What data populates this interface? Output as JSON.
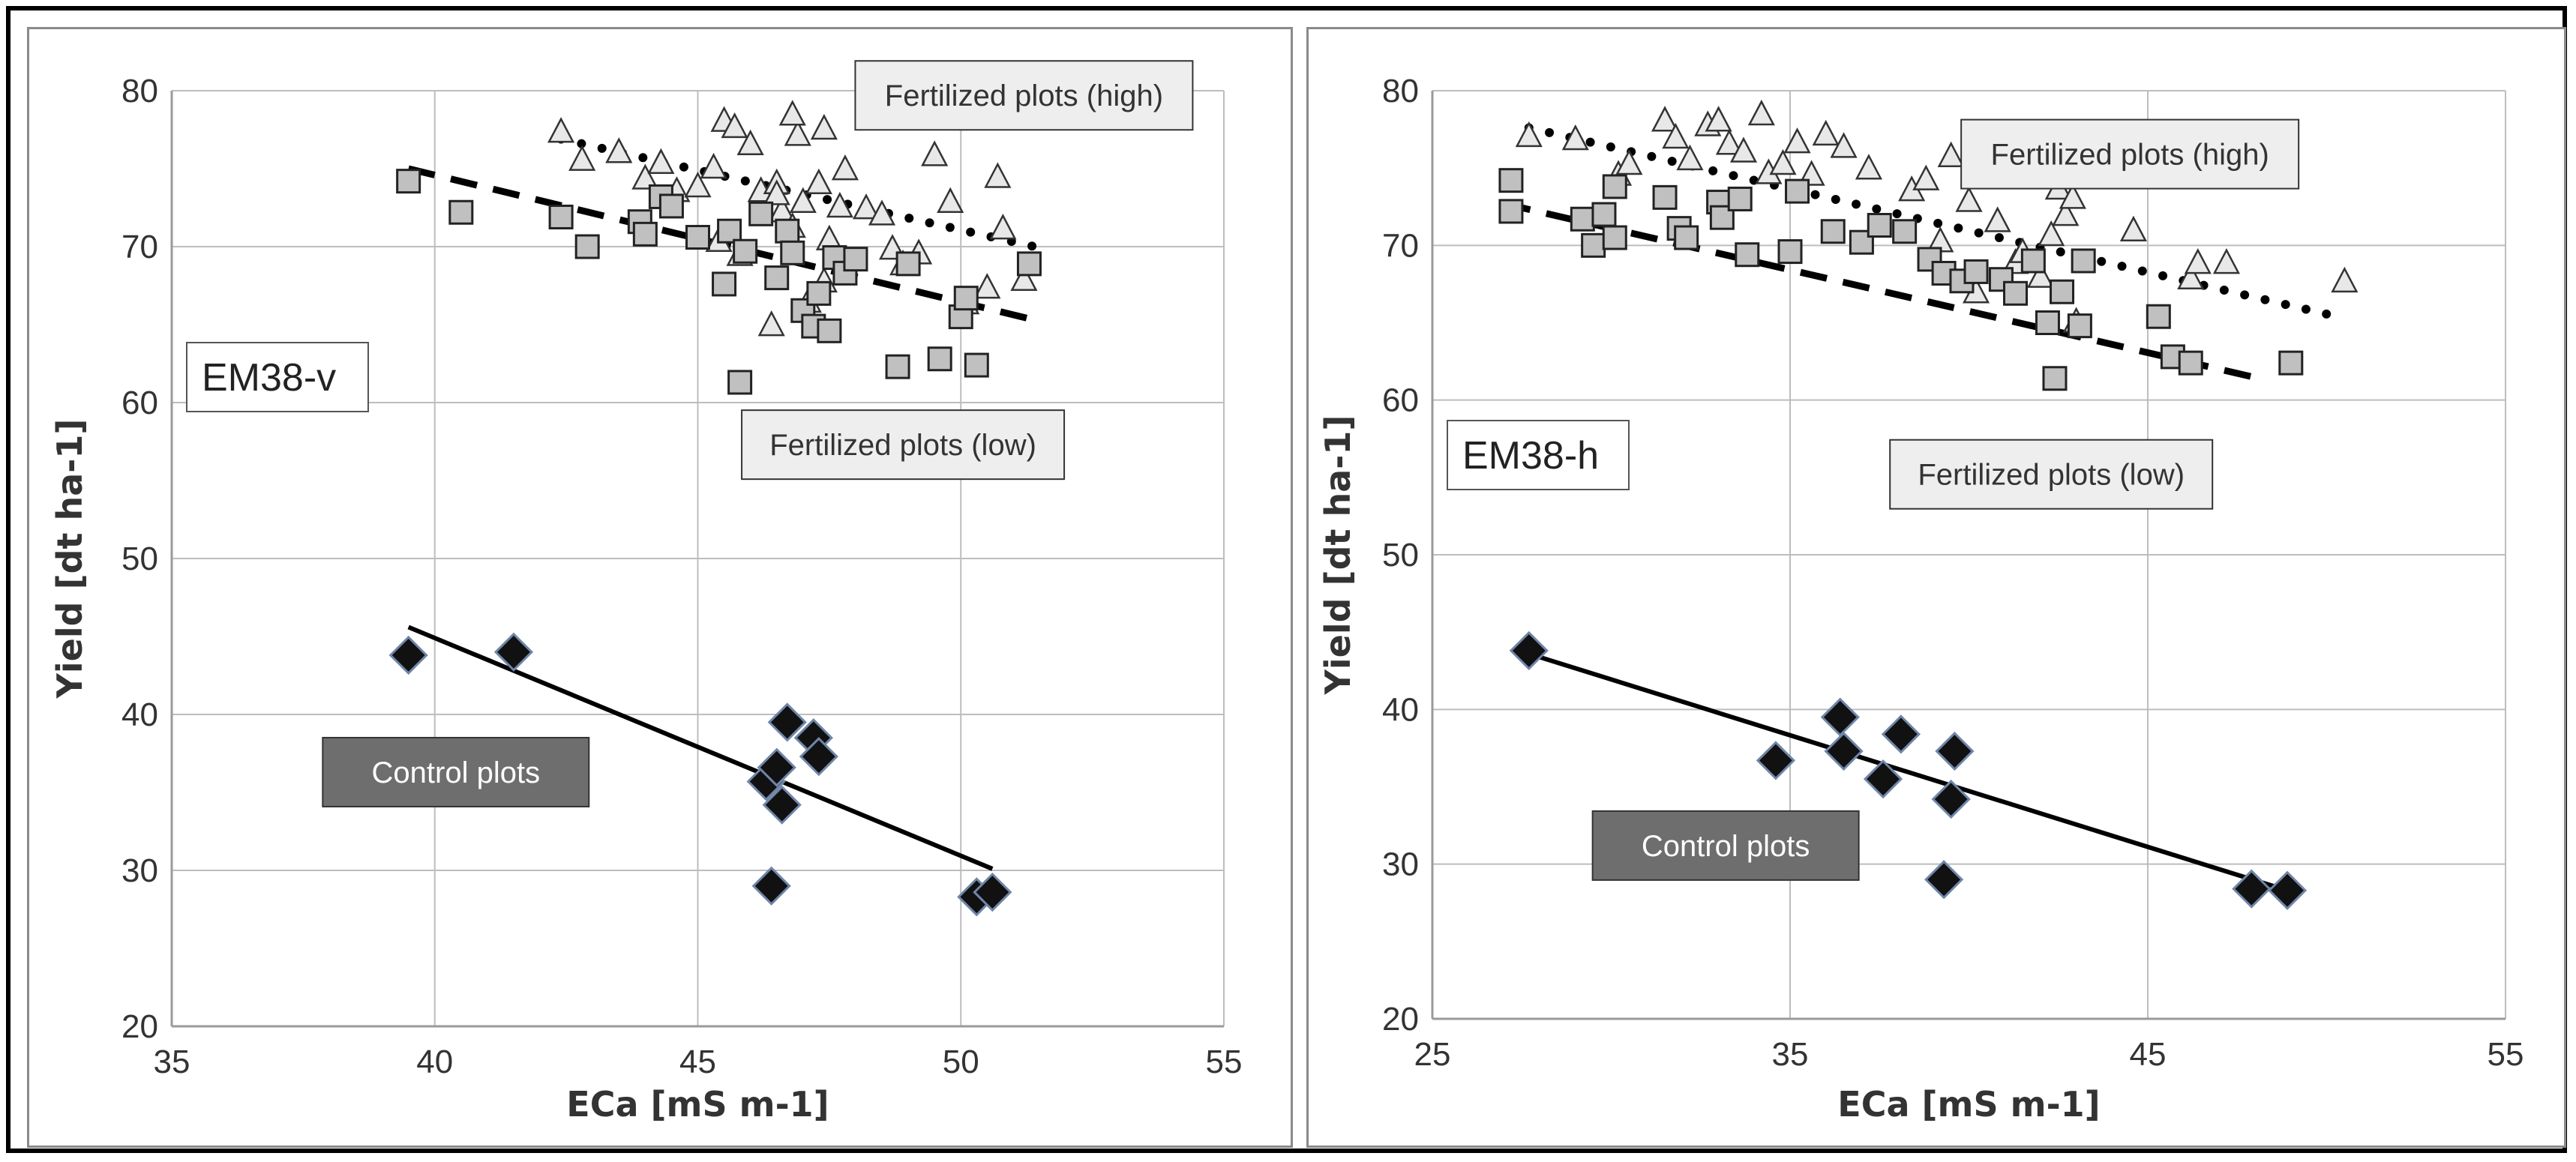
{
  "chart_data": [
    {
      "type": "scatter",
      "panel_label": "EM38-v",
      "xlabel": "ECa [mS m-1]",
      "ylabel": "Yield [dt ha-1]",
      "xlim": [
        35,
        55
      ],
      "ylim": [
        20,
        80
      ],
      "xticks": [
        "35",
        "40",
        "45",
        "50",
        "55"
      ],
      "yticks": [
        "20",
        "30",
        "40",
        "50",
        "60",
        "70",
        "80"
      ],
      "grid": true,
      "annotations": [
        {
          "text": "Fertilized plots (high)",
          "style": "light",
          "x": 51.2,
          "y": 79.7
        },
        {
          "text": "Fertilized plots (low)",
          "style": "light",
          "x": 48.9,
          "y": 57.3
        },
        {
          "text": "Control plots",
          "style": "dark",
          "x": 40.4,
          "y": 36.3
        }
      ],
      "series": [
        {
          "name": "Fertilized plots (high)",
          "marker": "triangle",
          "points": [
            [
              42.4,
              77.3
            ],
            [
              42.8,
              75.5
            ],
            [
              43.5,
              76.0
            ],
            [
              44.0,
              74.3
            ],
            [
              44.3,
              75.3
            ],
            [
              44.6,
              73.5
            ],
            [
              45.0,
              73.8
            ],
            [
              45.3,
              75.0
            ],
            [
              45.5,
              78.0
            ],
            [
              45.7,
              77.6
            ],
            [
              45.4,
              70.3
            ],
            [
              45.8,
              69.4
            ],
            [
              46.0,
              76.5
            ],
            [
              46.2,
              73.5
            ],
            [
              46.5,
              74.0
            ],
            [
              46.6,
              72.2
            ],
            [
              46.8,
              71.2
            ],
            [
              47.0,
              72.8
            ],
            [
              47.1,
              66.4
            ],
            [
              47.3,
              74.0
            ],
            [
              47.4,
              67.7
            ],
            [
              47.5,
              70.4
            ],
            [
              47.7,
              72.5
            ],
            [
              47.8,
              74.9
            ],
            [
              48.2,
              72.4
            ],
            [
              48.5,
              72.0
            ],
            [
              48.7,
              69.8
            ],
            [
              48.9,
              68.8
            ],
            [
              49.2,
              69.5
            ],
            [
              49.5,
              75.8
            ],
            [
              49.8,
              72.8
            ],
            [
              50.1,
              66.3
            ],
            [
              50.5,
              67.3
            ],
            [
              50.7,
              74.4
            ],
            [
              50.8,
              71.1
            ],
            [
              51.2,
              67.8
            ],
            [
              46.4,
              64.9
            ],
            [
              46.9,
              77.1
            ],
            [
              47.4,
              77.5
            ],
            [
              46.8,
              78.4
            ],
            [
              46.5,
              73.3
            ]
          ]
        },
        {
          "name": "Fertilized plots (low)",
          "marker": "square",
          "points": [
            [
              39.5,
              74.2
            ],
            [
              40.5,
              72.2
            ],
            [
              42.4,
              71.9
            ],
            [
              42.9,
              70.0
            ],
            [
              43.9,
              71.6
            ],
            [
              44.0,
              70.8
            ],
            [
              44.3,
              73.2
            ],
            [
              44.5,
              72.6
            ],
            [
              45.0,
              70.6
            ],
            [
              45.5,
              67.6
            ],
            [
              45.6,
              71.0
            ],
            [
              45.8,
              61.3
            ],
            [
              45.9,
              69.7
            ],
            [
              46.2,
              72.1
            ],
            [
              46.5,
              68.0
            ],
            [
              46.7,
              71.0
            ],
            [
              46.8,
              69.6
            ],
            [
              47.0,
              65.9
            ],
            [
              47.2,
              64.9
            ],
            [
              47.3,
              67.0
            ],
            [
              47.5,
              64.6
            ],
            [
              47.6,
              69.3
            ],
            [
              47.8,
              68.3
            ],
            [
              48.0,
              69.2
            ],
            [
              48.8,
              62.3
            ],
            [
              49.0,
              68.9
            ],
            [
              49.6,
              62.8
            ],
            [
              50.0,
              65.5
            ],
            [
              50.1,
              66.7
            ],
            [
              50.3,
              62.4
            ],
            [
              51.3,
              68.9
            ]
          ]
        },
        {
          "name": "Control plots",
          "marker": "diamond",
          "points": [
            [
              39.5,
              43.8
            ],
            [
              41.5,
              44.0
            ],
            [
              46.3,
              35.7
            ],
            [
              46.4,
              29.0
            ],
            [
              46.5,
              36.6
            ],
            [
              46.6,
              34.2
            ],
            [
              46.7,
              39.5
            ],
            [
              47.2,
              38.5
            ],
            [
              47.3,
              37.3
            ],
            [
              50.3,
              28.3
            ],
            [
              50.6,
              28.6
            ]
          ]
        }
      ],
      "trendlines": [
        {
          "series": "Fertilized plots (high)",
          "style": "dotted",
          "x": [
            42.4,
            51.4
          ],
          "y": [
            76.9,
            70.0
          ]
        },
        {
          "series": "Fertilized plots (low)",
          "style": "dashed",
          "x": [
            39.5,
            51.4
          ],
          "y": [
            75.0,
            65.3
          ]
        },
        {
          "series": "Control plots",
          "style": "solid",
          "x": [
            39.5,
            50.6
          ],
          "y": [
            45.6,
            30.1
          ]
        }
      ]
    },
    {
      "type": "scatter",
      "panel_label": "EM38-h",
      "xlabel": "ECa [mS m-1]",
      "ylabel": "Yield [dt ha-1]",
      "xlim": [
        25,
        55
      ],
      "ylim": [
        20,
        80
      ],
      "xticks": [
        "25",
        "35",
        "45",
        "55"
      ],
      "yticks": [
        "20",
        "30",
        "40",
        "50",
        "60",
        "70",
        "80"
      ],
      "grid": true,
      "annotations": [
        {
          "text": "Fertilized plots (high)",
          "style": "light",
          "x": 44.5,
          "y": 75.9
        },
        {
          "text": "Fertilized plots (low)",
          "style": "light",
          "x": 42.3,
          "y": 55.2
        },
        {
          "text": "Control plots",
          "style": "dark",
          "x": 33.2,
          "y": 31.2
        }
      ],
      "series": [
        {
          "name": "Fertilized plots (high)",
          "marker": "triangle",
          "points": [
            [
              27.7,
              77.0
            ],
            [
              29.0,
              76.8
            ],
            [
              30.2,
              74.5
            ],
            [
              30.5,
              75.2
            ],
            [
              31.5,
              78.0
            ],
            [
              31.8,
              76.9
            ],
            [
              32.2,
              75.5
            ],
            [
              32.7,
              77.7
            ],
            [
              33.0,
              78.0
            ],
            [
              33.3,
              76.5
            ],
            [
              33.7,
              76.0
            ],
            [
              34.2,
              78.4
            ],
            [
              34.4,
              74.6
            ],
            [
              34.8,
              75.2
            ],
            [
              35.2,
              76.6
            ],
            [
              36.0,
              77.1
            ],
            [
              36.5,
              76.3
            ],
            [
              37.2,
              74.9
            ],
            [
              38.4,
              73.5
            ],
            [
              38.8,
              74.2
            ],
            [
              39.2,
              70.2
            ],
            [
              39.5,
              75.7
            ],
            [
              40.0,
              72.8
            ],
            [
              40.2,
              66.9
            ],
            [
              40.8,
              71.5
            ],
            [
              41.1,
              74.3
            ],
            [
              41.3,
              68.8
            ],
            [
              41.5,
              69.5
            ],
            [
              42.0,
              67.9
            ],
            [
              42.5,
              73.6
            ],
            [
              42.7,
              71.9
            ],
            [
              42.9,
              73.0
            ],
            [
              43.0,
              65.0
            ],
            [
              44.6,
              70.9
            ],
            [
              46.2,
              67.8
            ],
            [
              46.4,
              68.8
            ],
            [
              47.2,
              68.8
            ],
            [
              50.5,
              67.6
            ],
            [
              35.6,
              74.5
            ],
            [
              42.3,
              70.6
            ]
          ]
        },
        {
          "name": "Fertilized plots (low)",
          "marker": "square",
          "points": [
            [
              27.2,
              74.2
            ],
            [
              27.2,
              72.2
            ],
            [
              29.2,
              71.7
            ],
            [
              29.5,
              70.0
            ],
            [
              29.8,
              72.0
            ],
            [
              30.1,
              70.5
            ],
            [
              30.1,
              73.8
            ],
            [
              31.5,
              73.1
            ],
            [
              31.9,
              71.1
            ],
            [
              32.1,
              70.5
            ],
            [
              33.0,
              72.8
            ],
            [
              33.1,
              71.8
            ],
            [
              33.6,
              73.0
            ],
            [
              33.8,
              69.4
            ],
            [
              35.0,
              69.6
            ],
            [
              35.2,
              73.5
            ],
            [
              36.2,
              70.9
            ],
            [
              37.0,
              70.2
            ],
            [
              37.5,
              71.3
            ],
            [
              38.2,
              70.9
            ],
            [
              38.9,
              69.1
            ],
            [
              39.3,
              68.2
            ],
            [
              39.8,
              67.7
            ],
            [
              40.2,
              68.3
            ],
            [
              40.9,
              67.8
            ],
            [
              41.3,
              66.9
            ],
            [
              41.8,
              69.0
            ],
            [
              42.2,
              65.0
            ],
            [
              42.4,
              61.4
            ],
            [
              42.6,
              67.0
            ],
            [
              43.1,
              64.8
            ],
            [
              43.2,
              69.0
            ],
            [
              45.3,
              65.4
            ],
            [
              45.7,
              62.8
            ],
            [
              46.2,
              62.4
            ],
            [
              49.0,
              62.4
            ]
          ]
        },
        {
          "name": "Control plots",
          "marker": "diamond",
          "points": [
            [
              27.7,
              43.8
            ],
            [
              34.6,
              36.7
            ],
            [
              36.4,
              39.5
            ],
            [
              36.5,
              37.3
            ],
            [
              37.6,
              35.5
            ],
            [
              38.1,
              38.4
            ],
            [
              39.3,
              29.0
            ],
            [
              39.5,
              34.2
            ],
            [
              39.6,
              37.3
            ],
            [
              47.9,
              28.4
            ],
            [
              48.9,
              28.3
            ]
          ]
        }
      ],
      "trendlines": [
        {
          "series": "Fertilized plots (high)",
          "style": "dotted",
          "x": [
            27.7,
            50.3
          ],
          "y": [
            77.6,
            65.4
          ]
        },
        {
          "series": "Fertilized plots (low)",
          "style": "dashed",
          "x": [
            27.0,
            48.3
          ],
          "y": [
            72.7,
            61.3
          ]
        },
        {
          "series": "Control plots",
          "style": "solid",
          "x": [
            27.7,
            48.9
          ],
          "y": [
            43.6,
            28.3
          ]
        }
      ]
    }
  ],
  "styles": {
    "marker_fill_gray": "#c0c0c0",
    "marker_fill_triangle": "#e8e8e8",
    "marker_fill_diamond": "#111111",
    "diamond_outline": "#6f86a8",
    "label_light_bg": "#eeeeee",
    "label_dark_bg": "#6e6e6e",
    "grid_color": "#bdbdbd",
    "text_color": "#333333"
  }
}
